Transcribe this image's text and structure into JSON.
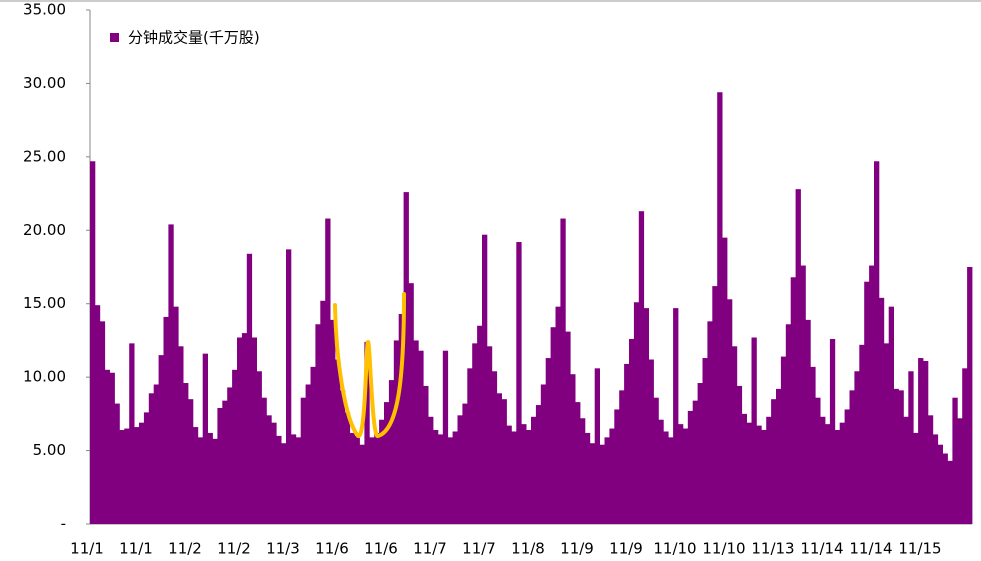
{
  "chart_data": {
    "type": "bar",
    "legend_label": "分钟成交量(千万股)",
    "color": "#800080",
    "categories": [
      "11/1",
      null,
      null,
      null,
      null,
      null,
      null,
      null,
      null,
      null,
      "11/1",
      null,
      null,
      null,
      null,
      null,
      null,
      null,
      null,
      null,
      "11/2",
      null,
      null,
      null,
      null,
      null,
      null,
      null,
      null,
      null,
      "11/2",
      null,
      null,
      null,
      null,
      null,
      null,
      null,
      null,
      null,
      "11/3",
      null,
      null,
      null,
      null,
      null,
      null,
      null,
      null,
      null,
      "11/6",
      null,
      null,
      null,
      null,
      null,
      null,
      null,
      null,
      null,
      "11/6",
      null,
      null,
      null,
      null,
      null,
      null,
      null,
      null,
      null,
      "11/7",
      null,
      null,
      null,
      null,
      null,
      null,
      null,
      null,
      null,
      "11/7",
      null,
      null,
      null,
      null,
      null,
      null,
      null,
      null,
      null,
      "11/8",
      null,
      null,
      null,
      null,
      null,
      null,
      null,
      null,
      null,
      "11/9",
      null,
      null,
      null,
      null,
      null,
      null,
      null,
      null,
      null,
      "11/9",
      null,
      null,
      null,
      null,
      null,
      null,
      null,
      null,
      null,
      "11/10",
      null,
      null,
      null,
      null,
      null,
      null,
      null,
      null,
      null,
      "11/10",
      null,
      null,
      null,
      null,
      null,
      null,
      null,
      null,
      null,
      "11/13",
      null,
      null,
      null,
      null,
      null,
      null,
      null,
      null,
      null,
      "11/14",
      null,
      null,
      null,
      null,
      null,
      null,
      null,
      null,
      null,
      "11/14",
      null,
      null,
      null,
      null,
      null,
      null,
      null,
      null,
      null,
      "11/15",
      null,
      null,
      null,
      null,
      null,
      null,
      null,
      null,
      null
    ],
    "values": [
      24.7,
      14.9,
      13.8,
      10.5,
      10.3,
      8.2,
      6.4,
      6.5,
      12.3,
      6.6,
      6.9,
      7.6,
      8.9,
      9.5,
      11.5,
      14.1,
      20.4,
      14.8,
      12.1,
      9.6,
      8.5,
      6.6,
      5.9,
      11.6,
      6.2,
      5.8,
      7.9,
      8.4,
      9.3,
      10.5,
      12.7,
      13.0,
      18.4,
      12.7,
      10.4,
      8.6,
      7.4,
      6.9,
      6.0,
      5.5,
      18.7,
      6.1,
      5.9,
      8.6,
      9.5,
      10.7,
      13.6,
      15.2,
      20.8,
      13.9,
      11.2,
      9.1,
      7.6,
      6.2,
      6.0,
      5.4,
      12.4,
      5.9,
      6.2,
      7.1,
      8.3,
      9.8,
      12.5,
      14.3,
      22.6,
      16.4,
      12.5,
      11.8,
      9.4,
      7.3,
      6.4,
      6.1,
      11.8,
      5.9,
      6.3,
      7.4,
      8.2,
      10.6,
      12.3,
      13.5,
      19.7,
      12.1,
      10.4,
      8.9,
      8.5,
      6.7,
      6.3,
      19.2,
      6.8,
      6.4,
      7.3,
      8.1,
      9.5,
      11.3,
      13.4,
      14.8,
      20.8,
      13.1,
      10.2,
      8.3,
      7.2,
      6.2,
      5.5,
      10.6,
      5.4,
      5.9,
      6.5,
      7.8,
      9.1,
      10.9,
      12.6,
      15.1,
      21.3,
      14.7,
      11.2,
      8.6,
      7.1,
      6.3,
      5.9,
      14.7,
      6.8,
      6.5,
      7.7,
      8.4,
      9.6,
      11.3,
      13.8,
      16.2,
      29.4,
      19.5,
      15.3,
      12.1,
      9.4,
      7.5,
      6.9,
      12.7,
      6.7,
      6.4,
      7.3,
      8.5,
      9.2,
      11.4,
      13.6,
      16.8,
      22.8,
      17.6,
      13.9,
      10.7,
      8.6,
      7.3,
      6.8,
      12.6,
      6.4,
      6.9,
      7.8,
      9.1,
      10.4,
      12.2,
      16.5,
      17.6,
      24.7,
      15.4,
      12.3,
      14.8,
      9.2,
      9.1,
      7.3,
      10.4,
      6.2,
      11.3,
      11.1,
      7.4,
      6.1,
      5.4,
      4.8,
      4.3,
      8.6,
      7.2,
      10.6,
      17.5
    ],
    "ylim": [
      0,
      35
    ],
    "yticks": [
      {
        "value": 0,
        "label": "-"
      },
      {
        "value": 5,
        "label": "5.00"
      },
      {
        "value": 10,
        "label": "10.00"
      },
      {
        "value": 15,
        "label": "15.00"
      },
      {
        "value": 20,
        "label": "20.00"
      },
      {
        "value": 25,
        "label": "25.00"
      },
      {
        "value": 30,
        "label": "30.00"
      },
      {
        "value": 35,
        "label": "35.00"
      }
    ],
    "grid": false
  }
}
